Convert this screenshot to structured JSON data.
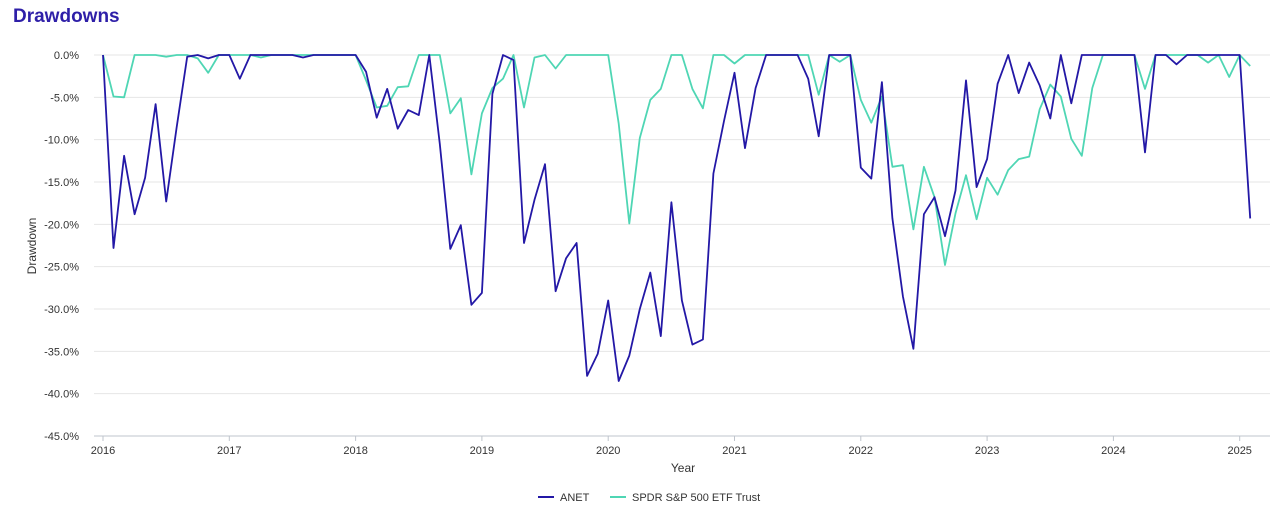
{
  "title": "Drawdowns",
  "chart_data": {
    "type": "line",
    "xlabel": "Year",
    "ylabel": "Drawdown",
    "x_ticks": [
      "2016",
      "2017",
      "2018",
      "2019",
      "2020",
      "2021",
      "2022",
      "2023",
      "2024",
      "2025"
    ],
    "y_ticks": [
      "0.0%",
      "-5.0%",
      "-10.0%",
      "-15.0%",
      "-20.0%",
      "-25.0%",
      "-30.0%",
      "-35.0%",
      "-40.0%",
      "-45.0%"
    ],
    "xlim": [
      "2016-01",
      "2025-03"
    ],
    "ylim": [
      -45,
      0
    ],
    "grid": true,
    "legend_position": "bottom-center",
    "series": [
      {
        "name": "ANET",
        "color": "#2318a6",
        "points": [
          [
            "2016-01",
            0
          ],
          [
            "2016-02",
            -22.8
          ],
          [
            "2016-03",
            -11.9
          ],
          [
            "2016-04",
            -18.8
          ],
          [
            "2016-05",
            -14.5
          ],
          [
            "2016-06",
            -5.8
          ],
          [
            "2016-07",
            -17.3
          ],
          [
            "2016-08",
            -8.5
          ],
          [
            "2016-09",
            -0.2
          ],
          [
            "2016-10",
            0
          ],
          [
            "2016-11",
            -0.4
          ],
          [
            "2016-12",
            0
          ],
          [
            "2017-01",
            0
          ],
          [
            "2017-02",
            -2.8
          ],
          [
            "2017-03",
            0
          ],
          [
            "2017-04",
            0
          ],
          [
            "2017-05",
            0
          ],
          [
            "2017-06",
            0
          ],
          [
            "2017-07",
            0
          ],
          [
            "2017-08",
            -0.3
          ],
          [
            "2017-09",
            0
          ],
          [
            "2017-10",
            0
          ],
          [
            "2017-11",
            0
          ],
          [
            "2017-12",
            0
          ],
          [
            "2018-01",
            0
          ],
          [
            "2018-02",
            -2.0
          ],
          [
            "2018-03",
            -7.4
          ],
          [
            "2018-04",
            -4.0
          ],
          [
            "2018-05",
            -8.7
          ],
          [
            "2018-06",
            -6.5
          ],
          [
            "2018-07",
            -7.1
          ],
          [
            "2018-08",
            0
          ],
          [
            "2018-09",
            -10.5
          ],
          [
            "2018-10",
            -22.9
          ],
          [
            "2018-11",
            -20.1
          ],
          [
            "2018-12",
            -29.5
          ],
          [
            "2019-01",
            -28.1
          ],
          [
            "2019-02",
            -4.6
          ],
          [
            "2019-03",
            0
          ],
          [
            "2019-04",
            -0.6
          ],
          [
            "2019-05",
            -22.2
          ],
          [
            "2019-06",
            -17.1
          ],
          [
            "2019-07",
            -12.9
          ],
          [
            "2019-08",
            -27.9
          ],
          [
            "2019-09",
            -24.0
          ],
          [
            "2019-10",
            -22.2
          ],
          [
            "2019-11",
            -37.9
          ],
          [
            "2019-12",
            -35.3
          ],
          [
            "2020-01",
            -29.0
          ],
          [
            "2020-02",
            -38.5
          ],
          [
            "2020-03",
            -35.5
          ],
          [
            "2020-04",
            -30.0
          ],
          [
            "2020-05",
            -25.7
          ],
          [
            "2020-06",
            -33.2
          ],
          [
            "2020-07",
            -17.4
          ],
          [
            "2020-08",
            -29.0
          ],
          [
            "2020-09",
            -34.2
          ],
          [
            "2020-10",
            -33.6
          ],
          [
            "2020-11",
            -14.0
          ],
          [
            "2020-12",
            -7.8
          ],
          [
            "2021-01",
            -2.1
          ],
          [
            "2021-02",
            -11.0
          ],
          [
            "2021-03",
            -3.9
          ],
          [
            "2021-04",
            0
          ],
          [
            "2021-05",
            0
          ],
          [
            "2021-06",
            0
          ],
          [
            "2021-07",
            0
          ],
          [
            "2021-08",
            -2.8
          ],
          [
            "2021-09",
            -9.6
          ],
          [
            "2021-10",
            0
          ],
          [
            "2021-11",
            0
          ],
          [
            "2021-12",
            0
          ],
          [
            "2022-01",
            -13.3
          ],
          [
            "2022-02",
            -14.6
          ],
          [
            "2022-03",
            -3.2
          ],
          [
            "2022-04",
            -19.3
          ],
          [
            "2022-05",
            -28.5
          ],
          [
            "2022-06",
            -34.7
          ],
          [
            "2022-07",
            -18.8
          ],
          [
            "2022-08",
            -16.8
          ],
          [
            "2022-09",
            -21.4
          ],
          [
            "2022-10",
            -16.0
          ],
          [
            "2022-11",
            -3.0
          ],
          [
            "2022-12",
            -15.6
          ],
          [
            "2023-01",
            -12.3
          ],
          [
            "2023-02",
            -3.4
          ],
          [
            "2023-03",
            0
          ],
          [
            "2023-04",
            -4.5
          ],
          [
            "2023-05",
            -0.9
          ],
          [
            "2023-06",
            -3.6
          ],
          [
            "2023-07",
            -7.5
          ],
          [
            "2023-08",
            0
          ],
          [
            "2023-09",
            -5.7
          ],
          [
            "2023-10",
            0
          ],
          [
            "2023-11",
            0
          ],
          [
            "2023-12",
            0
          ],
          [
            "2024-01",
            0
          ],
          [
            "2024-02",
            0
          ],
          [
            "2024-03",
            0
          ],
          [
            "2024-04",
            -11.5
          ],
          [
            "2024-05",
            0
          ],
          [
            "2024-06",
            0
          ],
          [
            "2024-07",
            -1.1
          ],
          [
            "2024-08",
            0
          ],
          [
            "2024-09",
            0
          ],
          [
            "2024-10",
            0
          ],
          [
            "2024-11",
            0
          ],
          [
            "2024-12",
            0
          ],
          [
            "2025-01",
            0
          ],
          [
            "2025-02",
            -19.3
          ]
        ]
      },
      {
        "name": "SPDR S&P 500 ETF Trust",
        "color": "#4fd6b4",
        "points": [
          [
            "2016-01",
            0
          ],
          [
            "2016-02",
            -4.9
          ],
          [
            "2016-03",
            -5.0
          ],
          [
            "2016-04",
            0
          ],
          [
            "2016-05",
            0
          ],
          [
            "2016-06",
            0
          ],
          [
            "2016-07",
            -0.2
          ],
          [
            "2016-08",
            0
          ],
          [
            "2016-09",
            0
          ],
          [
            "2016-10",
            -0.4
          ],
          [
            "2016-11",
            -2.1
          ],
          [
            "2016-12",
            0
          ],
          [
            "2017-01",
            0
          ],
          [
            "2017-02",
            0
          ],
          [
            "2017-03",
            0
          ],
          [
            "2017-04",
            -0.3
          ],
          [
            "2017-05",
            0
          ],
          [
            "2017-06",
            0
          ],
          [
            "2017-07",
            0
          ],
          [
            "2017-08",
            0
          ],
          [
            "2017-09",
            0
          ],
          [
            "2017-10",
            0
          ],
          [
            "2017-11",
            0
          ],
          [
            "2017-12",
            0
          ],
          [
            "2018-01",
            0
          ],
          [
            "2018-02",
            -3.0
          ],
          [
            "2018-03",
            -6.2
          ],
          [
            "2018-04",
            -6.0
          ],
          [
            "2018-05",
            -3.8
          ],
          [
            "2018-06",
            -3.7
          ],
          [
            "2018-07",
            0
          ],
          [
            "2018-08",
            0
          ],
          [
            "2018-09",
            0
          ],
          [
            "2018-10",
            -6.9
          ],
          [
            "2018-11",
            -5.1
          ],
          [
            "2018-12",
            -14.1
          ],
          [
            "2019-01",
            -6.9
          ],
          [
            "2019-02",
            -3.9
          ],
          [
            "2019-03",
            -2.8
          ],
          [
            "2019-04",
            0
          ],
          [
            "2019-05",
            -6.2
          ],
          [
            "2019-06",
            -0.3
          ],
          [
            "2019-07",
            0
          ],
          [
            "2019-08",
            -1.6
          ],
          [
            "2019-09",
            0
          ],
          [
            "2019-10",
            0
          ],
          [
            "2019-11",
            0
          ],
          [
            "2019-12",
            0
          ],
          [
            "2020-01",
            0
          ],
          [
            "2020-02",
            -8.1
          ],
          [
            "2020-03",
            -19.9
          ],
          [
            "2020-04",
            -9.8
          ],
          [
            "2020-05",
            -5.3
          ],
          [
            "2020-06",
            -4.0
          ],
          [
            "2020-07",
            0
          ],
          [
            "2020-08",
            0
          ],
          [
            "2020-09",
            -4.0
          ],
          [
            "2020-10",
            -6.3
          ],
          [
            "2020-11",
            0
          ],
          [
            "2020-12",
            0
          ],
          [
            "2021-01",
            -1.0
          ],
          [
            "2021-02",
            0
          ],
          [
            "2021-03",
            0
          ],
          [
            "2021-04",
            0
          ],
          [
            "2021-05",
            0
          ],
          [
            "2021-06",
            0
          ],
          [
            "2021-07",
            0
          ],
          [
            "2021-08",
            0
          ],
          [
            "2021-09",
            -4.7
          ],
          [
            "2021-10",
            0
          ],
          [
            "2021-11",
            -0.8
          ],
          [
            "2021-12",
            0
          ],
          [
            "2022-01",
            -5.3
          ],
          [
            "2022-02",
            -8.0
          ],
          [
            "2022-03",
            -4.9
          ],
          [
            "2022-04",
            -13.2
          ],
          [
            "2022-05",
            -13.0
          ],
          [
            "2022-06",
            -20.6
          ],
          [
            "2022-07",
            -13.2
          ],
          [
            "2022-08",
            -16.8
          ],
          [
            "2022-09",
            -24.8
          ],
          [
            "2022-10",
            -18.7
          ],
          [
            "2022-11",
            -14.2
          ],
          [
            "2022-12",
            -19.4
          ],
          [
            "2023-01",
            -14.5
          ],
          [
            "2023-02",
            -16.5
          ],
          [
            "2023-03",
            -13.6
          ],
          [
            "2023-04",
            -12.3
          ],
          [
            "2023-05",
            -12.0
          ],
          [
            "2023-06",
            -6.4
          ],
          [
            "2023-07",
            -3.5
          ],
          [
            "2023-08",
            -4.9
          ],
          [
            "2023-09",
            -9.9
          ],
          [
            "2023-10",
            -11.9
          ],
          [
            "2023-11",
            -3.9
          ],
          [
            "2023-12",
            0
          ],
          [
            "2024-01",
            0
          ],
          [
            "2024-02",
            0
          ],
          [
            "2024-03",
            0
          ],
          [
            "2024-04",
            -4.0
          ],
          [
            "2024-05",
            0
          ],
          [
            "2024-06",
            0
          ],
          [
            "2024-07",
            0
          ],
          [
            "2024-08",
            0
          ],
          [
            "2024-09",
            0
          ],
          [
            "2024-10",
            -0.9
          ],
          [
            "2024-11",
            0
          ],
          [
            "2024-12",
            -2.6
          ],
          [
            "2025-01",
            0
          ],
          [
            "2025-02",
            -1.3
          ]
        ]
      }
    ]
  }
}
